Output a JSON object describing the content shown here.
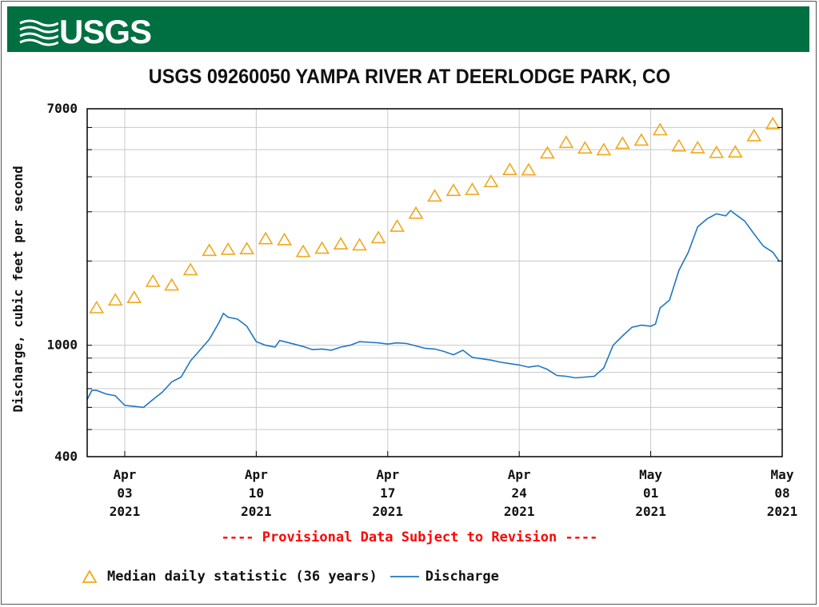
{
  "header": {
    "logo_text": "USGS",
    "brand_color": "#006f41"
  },
  "chart_data": {
    "type": "line",
    "title": "USGS 09260050 YAMPA RIVER AT DEERLODGE PARK, CO",
    "ylabel": "Discharge, cubic feet per second",
    "xlabel": "",
    "y_scale": "log",
    "ylim": [
      400,
      7000
    ],
    "y_ticks": [
      {
        "value": 400,
        "label": "400"
      },
      {
        "value": 1000,
        "label": "1000"
      },
      {
        "value": 7000,
        "label": "7000"
      }
    ],
    "xlim": [
      "2021-04-01T00:00",
      "2021-05-08T00:00"
    ],
    "x_ticks": [
      {
        "date": "2021-04-03",
        "lines": [
          "Apr",
          "03",
          "2021"
        ]
      },
      {
        "date": "2021-04-10",
        "lines": [
          "Apr",
          "10",
          "2021"
        ]
      },
      {
        "date": "2021-04-17",
        "lines": [
          "Apr",
          "17",
          "2021"
        ]
      },
      {
        "date": "2021-04-24",
        "lines": [
          "Apr",
          "24",
          "2021"
        ]
      },
      {
        "date": "2021-05-01",
        "lines": [
          "May",
          "01",
          "2021"
        ]
      },
      {
        "date": "2021-05-08",
        "lines": [
          "May",
          "08",
          "2021"
        ]
      }
    ],
    "grid": true,
    "note": "---- Provisional Data Subject to Revision ----",
    "series": [
      {
        "name": "Median daily statistic (36 years)",
        "marker": "triangle",
        "color": "#f2a81d",
        "points": [
          [
            "2021-04-01T12:00",
            1360
          ],
          [
            "2021-04-02T12:00",
            1450
          ],
          [
            "2021-04-03T12:00",
            1480
          ],
          [
            "2021-04-04T12:00",
            1690
          ],
          [
            "2021-04-05T12:00",
            1640
          ],
          [
            "2021-04-06T12:00",
            1860
          ],
          [
            "2021-04-07T12:00",
            2180
          ],
          [
            "2021-04-08T12:00",
            2200
          ],
          [
            "2021-04-09T12:00",
            2210
          ],
          [
            "2021-04-10T12:00",
            2400
          ],
          [
            "2021-04-11T12:00",
            2380
          ],
          [
            "2021-04-12T12:00",
            2160
          ],
          [
            "2021-04-13T12:00",
            2220
          ],
          [
            "2021-04-14T12:00",
            2300
          ],
          [
            "2021-04-15T12:00",
            2280
          ],
          [
            "2021-04-16T12:00",
            2420
          ],
          [
            "2021-04-17T12:00",
            2660
          ],
          [
            "2021-04-18T12:00",
            2960
          ],
          [
            "2021-04-19T12:00",
            3410
          ],
          [
            "2021-04-20T12:00",
            3570
          ],
          [
            "2021-04-21T12:00",
            3600
          ],
          [
            "2021-04-22T12:00",
            3840
          ],
          [
            "2021-04-23T12:00",
            4240
          ],
          [
            "2021-04-24T12:00",
            4230
          ],
          [
            "2021-04-25T12:00",
            4860
          ],
          [
            "2021-04-26T12:00",
            5300
          ],
          [
            "2021-04-27T12:00",
            5060
          ],
          [
            "2021-04-28T12:00",
            4990
          ],
          [
            "2021-04-29T12:00",
            5260
          ],
          [
            "2021-04-30T12:00",
            5400
          ],
          [
            "2021-05-01T12:00",
            5880
          ],
          [
            "2021-05-02T12:00",
            5150
          ],
          [
            "2021-05-03T12:00",
            5070
          ],
          [
            "2021-05-04T12:00",
            4880
          ],
          [
            "2021-05-05T12:00",
            4900
          ],
          [
            "2021-05-06T12:00",
            5600
          ],
          [
            "2021-05-07T12:00",
            6180
          ]
        ]
      },
      {
        "name": "Discharge",
        "marker": "line",
        "color": "#1f77c4",
        "points": [
          [
            "2021-04-01T00:00",
            640
          ],
          [
            "2021-04-01T06:00",
            690
          ],
          [
            "2021-04-01T12:00",
            690
          ],
          [
            "2021-04-02T00:00",
            670
          ],
          [
            "2021-04-02T12:00",
            660
          ],
          [
            "2021-04-03T00:00",
            610
          ],
          [
            "2021-04-03T12:00",
            605
          ],
          [
            "2021-04-04T00:00",
            600
          ],
          [
            "2021-04-04T12:00",
            640
          ],
          [
            "2021-04-05T00:00",
            680
          ],
          [
            "2021-04-05T12:00",
            740
          ],
          [
            "2021-04-06T00:00",
            770
          ],
          [
            "2021-04-06T12:00",
            880
          ],
          [
            "2021-04-07T00:00",
            960
          ],
          [
            "2021-04-07T12:00",
            1050
          ],
          [
            "2021-04-08T00:00",
            1200
          ],
          [
            "2021-04-08T06:00",
            1300
          ],
          [
            "2021-04-08T12:00",
            1260
          ],
          [
            "2021-04-09T00:00",
            1240
          ],
          [
            "2021-04-09T12:00",
            1170
          ],
          [
            "2021-04-10T00:00",
            1030
          ],
          [
            "2021-04-10T12:00",
            1000
          ],
          [
            "2021-04-11T00:00",
            985
          ],
          [
            "2021-04-11T06:00",
            1040
          ],
          [
            "2021-04-11T12:00",
            1030
          ],
          [
            "2021-04-12T00:00",
            1010
          ],
          [
            "2021-04-12T12:00",
            990
          ],
          [
            "2021-04-13T00:00",
            965
          ],
          [
            "2021-04-13T12:00",
            970
          ],
          [
            "2021-04-14T00:00",
            960
          ],
          [
            "2021-04-14T12:00",
            985
          ],
          [
            "2021-04-15T00:00",
            1000
          ],
          [
            "2021-04-15T12:00",
            1030
          ],
          [
            "2021-04-16T00:00",
            1025
          ],
          [
            "2021-04-16T12:00",
            1020
          ],
          [
            "2021-04-17T00:00",
            1010
          ],
          [
            "2021-04-17T12:00",
            1020
          ],
          [
            "2021-04-18T00:00",
            1015
          ],
          [
            "2021-04-18T12:00",
            995
          ],
          [
            "2021-04-19T00:00",
            975
          ],
          [
            "2021-04-19T12:00",
            970
          ],
          [
            "2021-04-20T00:00",
            950
          ],
          [
            "2021-04-20T12:00",
            925
          ],
          [
            "2021-04-21T00:00",
            960
          ],
          [
            "2021-04-21T12:00",
            905
          ],
          [
            "2021-04-22T00:00",
            895
          ],
          [
            "2021-04-22T12:00",
            885
          ],
          [
            "2021-04-23T00:00",
            870
          ],
          [
            "2021-04-23T12:00",
            860
          ],
          [
            "2021-04-24T00:00",
            850
          ],
          [
            "2021-04-24T12:00",
            835
          ],
          [
            "2021-04-25T00:00",
            845
          ],
          [
            "2021-04-25T12:00",
            820
          ],
          [
            "2021-04-26T00:00",
            780
          ],
          [
            "2021-04-26T12:00",
            775
          ],
          [
            "2021-04-27T00:00",
            765
          ],
          [
            "2021-04-27T12:00",
            770
          ],
          [
            "2021-04-28T00:00",
            775
          ],
          [
            "2021-04-28T12:00",
            830
          ],
          [
            "2021-04-29T00:00",
            1000
          ],
          [
            "2021-04-29T12:00",
            1080
          ],
          [
            "2021-04-30T00:00",
            1160
          ],
          [
            "2021-04-30T12:00",
            1180
          ],
          [
            "2021-05-01T00:00",
            1170
          ],
          [
            "2021-05-01T06:00",
            1190
          ],
          [
            "2021-05-01T12:00",
            1360
          ],
          [
            "2021-05-02T00:00",
            1450
          ],
          [
            "2021-05-02T12:00",
            1850
          ],
          [
            "2021-05-03T00:00",
            2150
          ],
          [
            "2021-05-03T12:00",
            2650
          ],
          [
            "2021-05-04T00:00",
            2830
          ],
          [
            "2021-05-04T12:00",
            2950
          ],
          [
            "2021-05-05T00:00",
            2900
          ],
          [
            "2021-05-05T06:00",
            3030
          ],
          [
            "2021-05-05T12:00",
            2940
          ],
          [
            "2021-05-06T00:00",
            2780
          ],
          [
            "2021-05-06T12:00",
            2500
          ],
          [
            "2021-05-07T00:00",
            2260
          ],
          [
            "2021-05-07T12:00",
            2150
          ],
          [
            "2021-05-07T20:00",
            2000
          ]
        ]
      }
    ]
  },
  "legend": {
    "median_label": "Median daily statistic (36 years)",
    "discharge_label": "Discharge"
  }
}
